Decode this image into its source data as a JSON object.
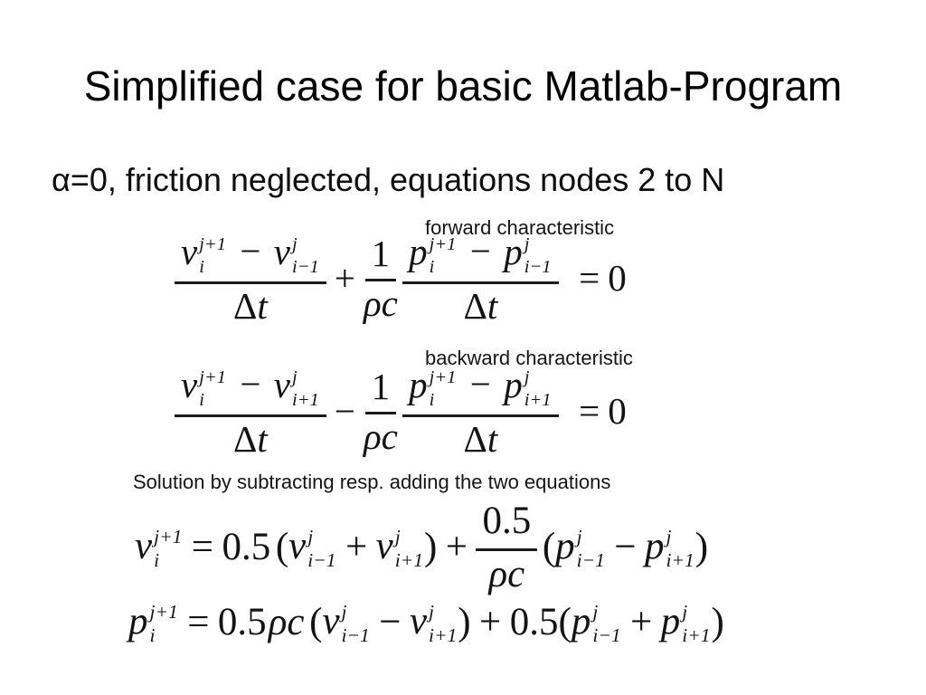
{
  "slide": {
    "title": "Simplified case for basic Matlab-Program",
    "subtitle": "α=0, friction neglected, equations nodes 2 to N"
  },
  "labels": {
    "forward": "forward characteristic",
    "backward": "backward characteristic",
    "solution": "Solution by subtracting resp. adding the two equations"
  },
  "equations": {
    "forward_transcript": "(v_i^{j+1} − v_{i−1}^{j})/Δt + (1/ρc)·(p_i^{j+1} − p_{i−1}^{j})/Δt = 0",
    "backward_transcript": "(v_i^{j+1} − v_{i+1}^{j})/Δt − (1/ρc)·(p_i^{j+1} − p_{i+1}^{j})/Δt = 0",
    "velocity_transcript": "v_i^{j+1} = 0.5(v_{i−1}^{j} + v_{i+1}^{j}) + (0.5/ρc)(p_{i−1}^{j} − p_{i+1}^{j})",
    "pressure_transcript": "p_i^{j+1} = 0.5ρc(v_{i−1}^{j} − v_{i+1}^{j}) + 0.5(p_{i−1}^{j} + p_{i+1}^{j})"
  },
  "sym": {
    "v": "v",
    "p": "p",
    "sup_j1": "j+1",
    "sup_j": "j",
    "sub_i": "i",
    "sub_im1": "i−1",
    "sub_ip1": "i+1",
    "delta": "Δ",
    "t": "t",
    "one": "1",
    "rho_c": "ρc",
    "half": "0.5",
    "zero": "0",
    "plus": "+",
    "minus": "−",
    "equals": "=",
    "lparen": "(",
    "rparen": ")"
  },
  "colors": {
    "background": "#ffffff",
    "text": "#111111"
  }
}
